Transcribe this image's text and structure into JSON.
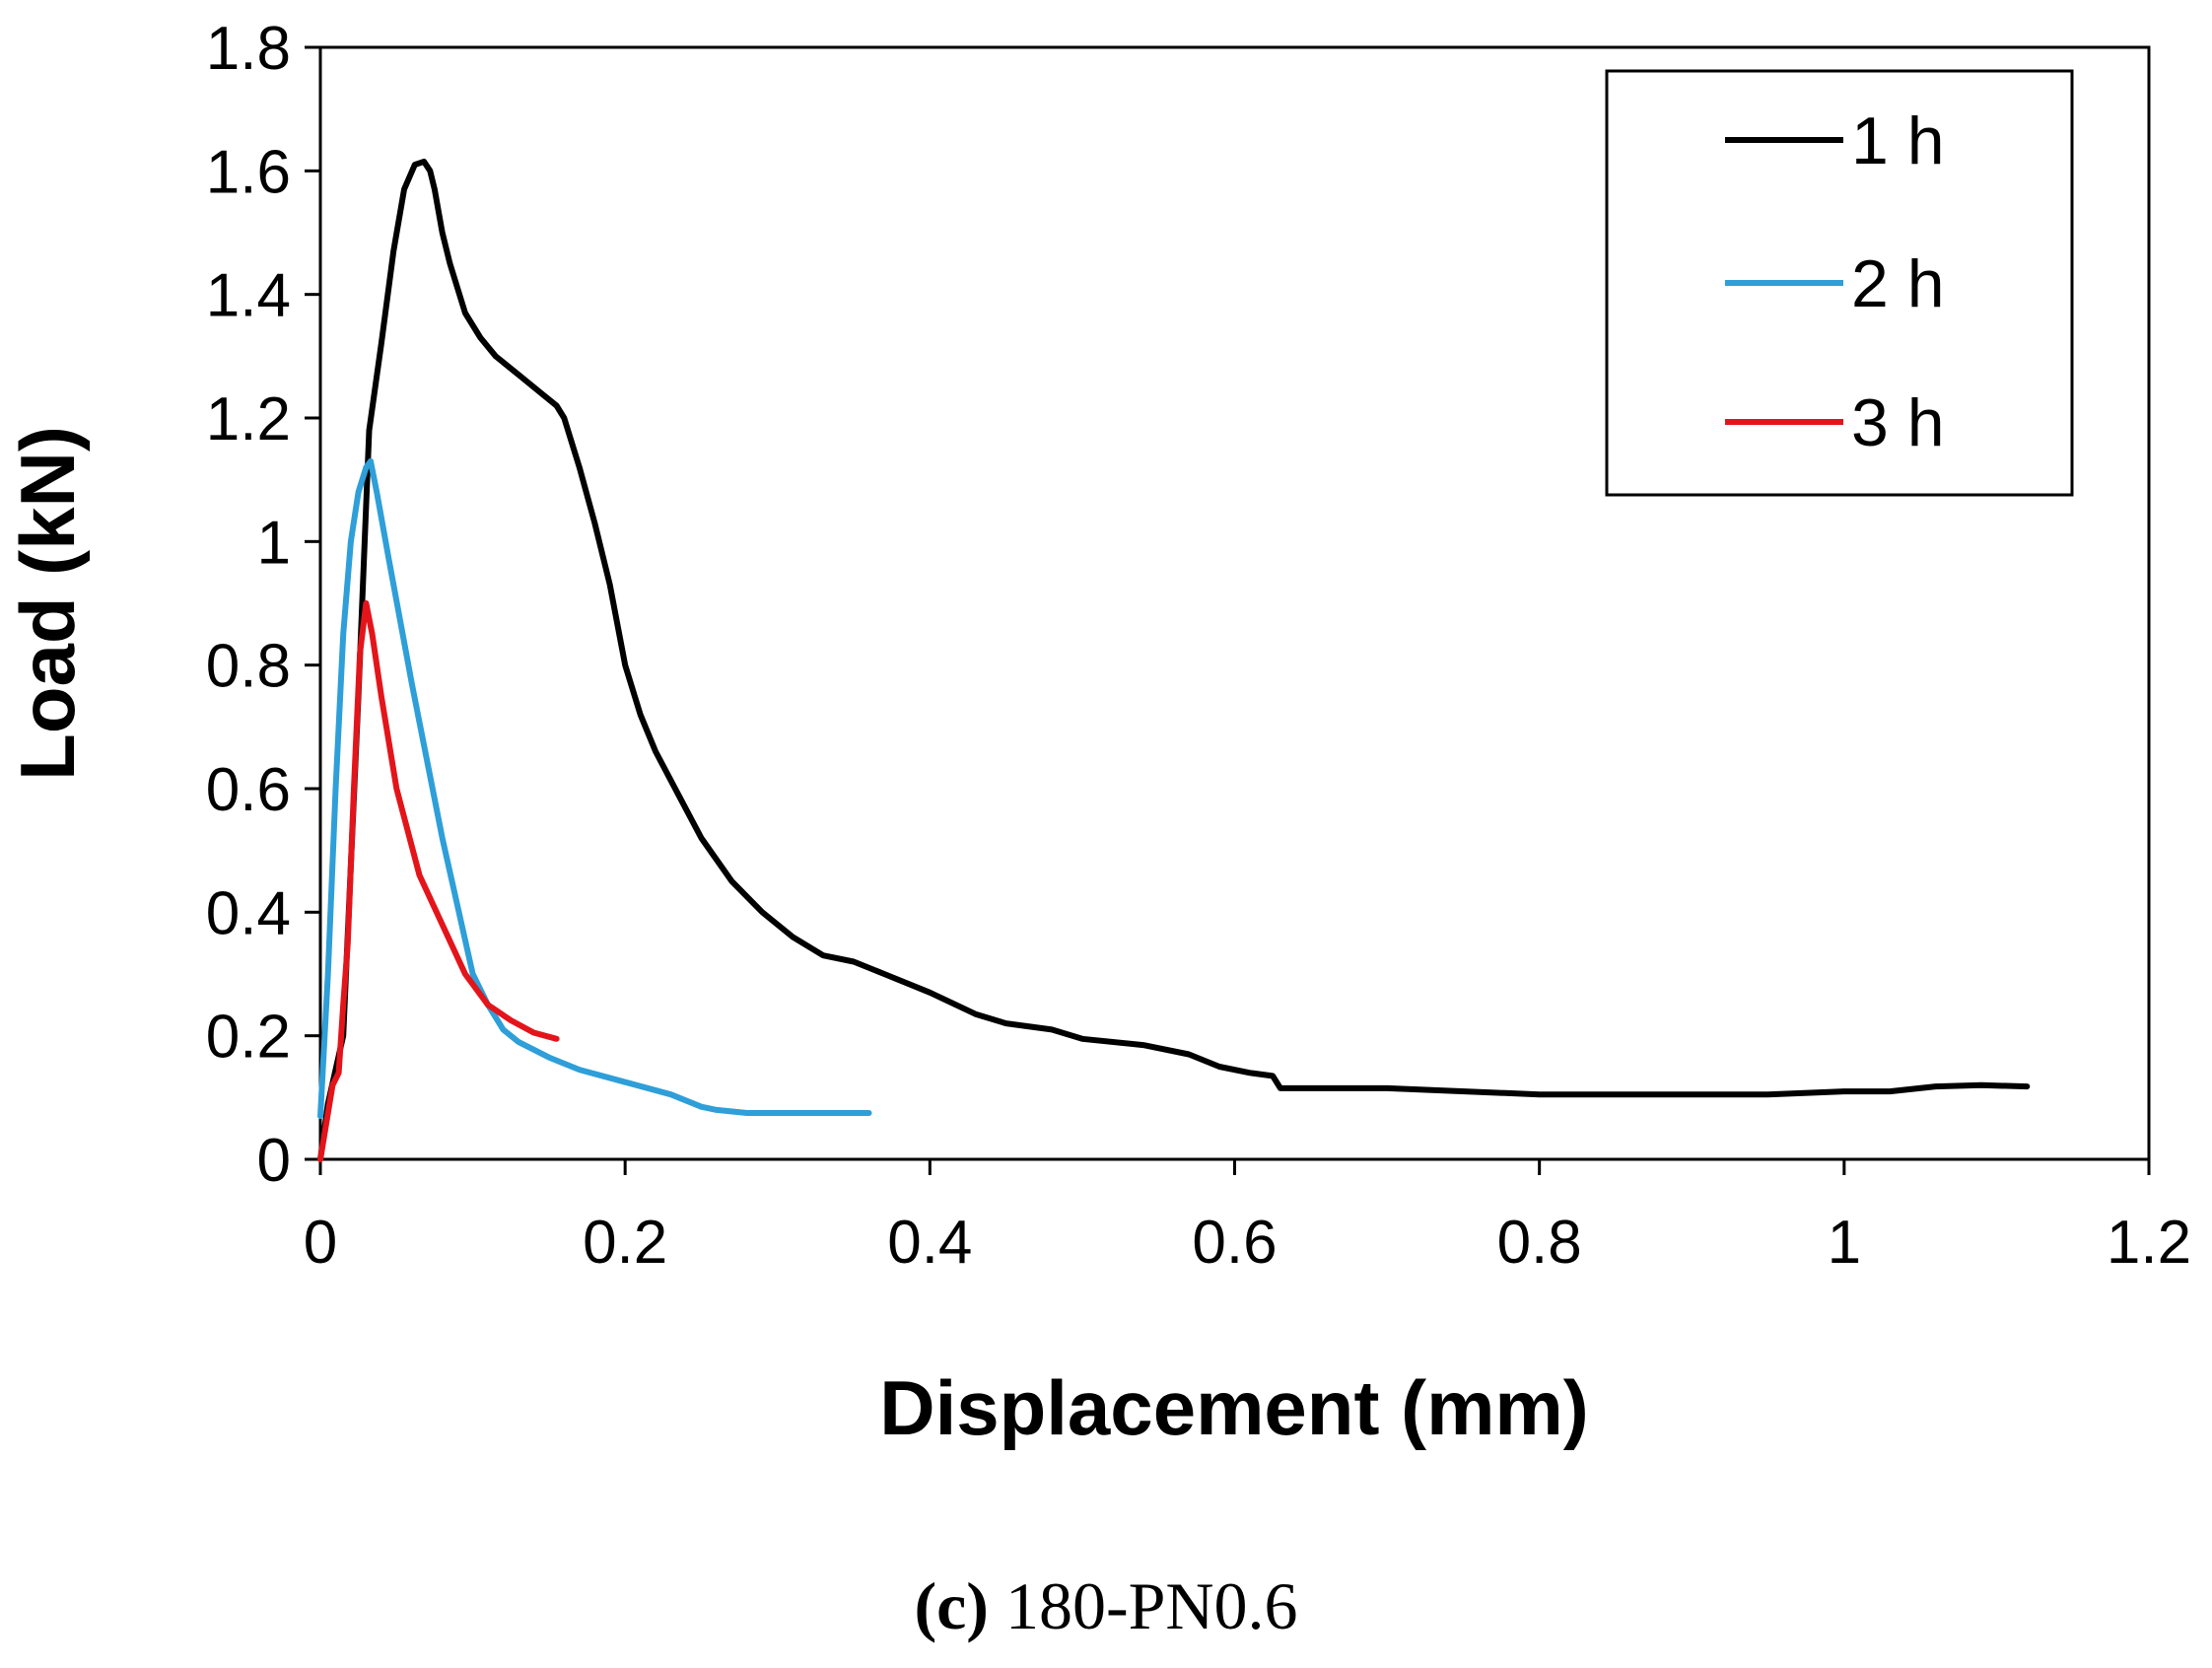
{
  "chart_data": {
    "type": "line",
    "title": "",
    "xlabel": "Displacement (mm)",
    "ylabel": "Load (kN)",
    "xlim": [
      0,
      1.2
    ],
    "ylim": [
      0,
      1.8
    ],
    "xticks": [
      0,
      0.2,
      0.4,
      0.6,
      0.8,
      1,
      1.2
    ],
    "xtick_labels": [
      "0",
      "0.2",
      "0.4",
      "0.6",
      "0.8",
      "1",
      "1.2"
    ],
    "yticks": [
      0,
      0.2,
      0.4,
      0.6,
      0.8,
      1,
      1.2,
      1.4,
      1.6,
      1.8
    ],
    "ytick_labels": [
      "0",
      "0.2",
      "0.4",
      "0.6",
      "0.8",
      "1",
      "1.2",
      "1.4",
      "1.6",
      "1.8"
    ],
    "grid": false,
    "legend_position": "top-right",
    "series": [
      {
        "name": "1 h",
        "color": "#000000",
        "x": [
          0,
          0.005,
          0.015,
          0.025,
          0.032,
          0.04,
          0.048,
          0.055,
          0.062,
          0.068,
          0.072,
          0.075,
          0.08,
          0.085,
          0.095,
          0.105,
          0.115,
          0.13,
          0.145,
          0.155,
          0.16,
          0.17,
          0.18,
          0.19,
          0.2,
          0.21,
          0.22,
          0.235,
          0.25,
          0.27,
          0.29,
          0.31,
          0.33,
          0.35,
          0.37,
          0.4,
          0.43,
          0.45,
          0.48,
          0.5,
          0.54,
          0.57,
          0.59,
          0.61,
          0.625,
          0.63,
          0.64,
          0.7,
          0.8,
          0.9,
          0.95,
          1.0,
          1.03,
          1.06,
          1.09,
          1.12
        ],
        "y": [
          0,
          0.09,
          0.2,
          0.75,
          1.18,
          1.32,
          1.47,
          1.57,
          1.61,
          1.615,
          1.6,
          1.57,
          1.5,
          1.45,
          1.37,
          1.33,
          1.3,
          1.27,
          1.24,
          1.22,
          1.2,
          1.12,
          1.03,
          0.93,
          0.8,
          0.72,
          0.66,
          0.59,
          0.52,
          0.45,
          0.4,
          0.36,
          0.33,
          0.32,
          0.3,
          0.27,
          0.235,
          0.22,
          0.21,
          0.195,
          0.185,
          0.17,
          0.15,
          0.14,
          0.135,
          0.115,
          0.115,
          0.115,
          0.105,
          0.105,
          0.105,
          0.11,
          0.11,
          0.118,
          0.12,
          0.118
        ]
      },
      {
        "name": "2 h",
        "color": "#2e9fd8",
        "x": [
          0,
          0.005,
          0.01,
          0.015,
          0.02,
          0.025,
          0.03,
          0.033,
          0.037,
          0.045,
          0.06,
          0.08,
          0.1,
          0.11,
          0.12,
          0.13,
          0.15,
          0.17,
          0.2,
          0.23,
          0.25,
          0.26,
          0.28,
          0.3,
          0.33,
          0.36
        ],
        "y": [
          0.07,
          0.3,
          0.6,
          0.85,
          1.0,
          1.08,
          1.12,
          1.13,
          1.08,
          0.97,
          0.77,
          0.52,
          0.3,
          0.25,
          0.21,
          0.19,
          0.165,
          0.145,
          0.125,
          0.105,
          0.085,
          0.08,
          0.075,
          0.075,
          0.075,
          0.075
        ]
      },
      {
        "name": "3 h",
        "color": "#e3151b",
        "x": [
          0,
          0.004,
          0.008,
          0.012,
          0.015,
          0.018,
          0.022,
          0.026,
          0.03,
          0.034,
          0.04,
          0.05,
          0.065,
          0.08,
          0.095,
          0.11,
          0.125,
          0.14,
          0.155
        ],
        "y": [
          0,
          0.06,
          0.12,
          0.14,
          0.25,
          0.35,
          0.6,
          0.82,
          0.9,
          0.85,
          0.75,
          0.6,
          0.46,
          0.38,
          0.3,
          0.25,
          0.225,
          0.205,
          0.195
        ]
      }
    ]
  },
  "caption": {
    "label": "(c)",
    "text": "180-PN0.6"
  }
}
